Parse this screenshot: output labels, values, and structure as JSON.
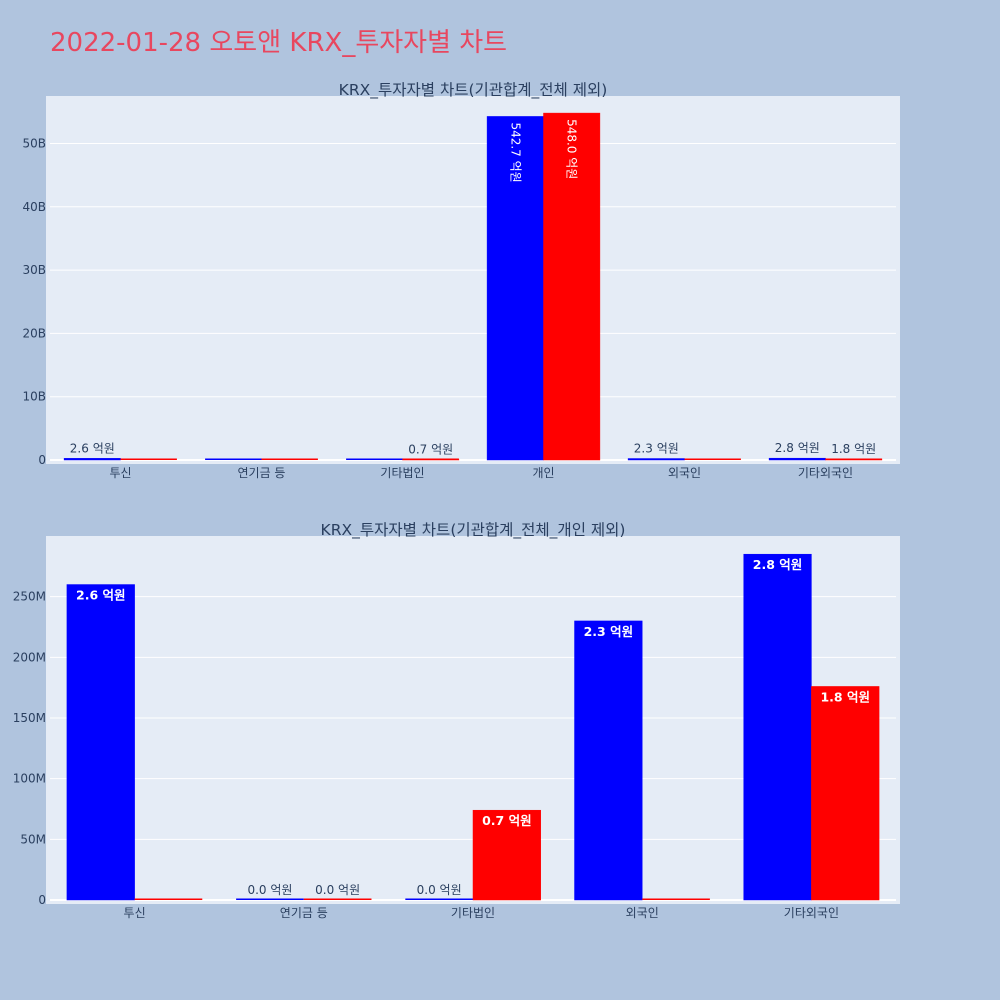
{
  "page": {
    "title": "2022-01-28 오토앤 KRX_투자자별 차트",
    "colors": {
      "background": "#b0c4de",
      "plot_bg": "#e5ecf6",
      "title": "#e8475f",
      "text": "#2a3f5f",
      "buy": "#0000ff",
      "sell": "#ff0000"
    }
  },
  "chart_data": [
    {
      "type": "bar",
      "title": "KRX_투자자별 차트(기관합계_전체 제외)",
      "categories": [
        "투신",
        "연기금 등",
        "기타법인",
        "개인",
        "외국인",
        "기타외국인"
      ],
      "series": [
        {
          "color": "#0000ff",
          "values": [
            260000000,
            0,
            0,
            54270000000,
            230000000,
            285000000
          ],
          "labels": [
            "2.6 억원",
            "",
            "",
            "542.7 억원",
            "2.3 억원",
            "2.8 억원"
          ]
        },
        {
          "color": "#ff0000",
          "values": [
            0,
            0,
            74000000,
            54800000000,
            0,
            176000000
          ],
          "labels": [
            "",
            "",
            "0.7 억원",
            "548.0 억원",
            "",
            "1.8 억원"
          ]
        }
      ],
      "yticks": [
        0,
        10000000000,
        20000000000,
        30000000000,
        40000000000,
        50000000000
      ],
      "ytick_labels": [
        "0",
        "10B",
        "20B",
        "30B",
        "40B",
        "50B"
      ],
      "ylim": [
        0,
        57500000000
      ],
      "grid": true
    },
    {
      "type": "bar",
      "title": "KRX_투자자별 차트(기관합계_전체_개인 제외)",
      "categories": [
        "투신",
        "연기금 등",
        "기타법인",
        "외국인",
        "기타외국인"
      ],
      "series": [
        {
          "color": "#0000ff",
          "values": [
            260000000,
            0,
            0,
            230000000,
            285000000
          ],
          "labels": [
            "2.6 억원",
            "0.0 억원",
            "0.0 억원",
            "2.3 억원",
            "2.8 억원"
          ]
        },
        {
          "color": "#ff0000",
          "values": [
            0,
            0,
            74000000,
            0,
            176000000
          ],
          "labels": [
            "",
            "0.0 억원",
            "0.7 억원",
            "",
            "1.8 억원"
          ]
        }
      ],
      "yticks": [
        0,
        50000000,
        100000000,
        150000000,
        200000000,
        250000000
      ],
      "ytick_labels": [
        "0",
        "50M",
        "100M",
        "150M",
        "200M",
        "250M"
      ],
      "ylim": [
        0,
        300000000
      ],
      "grid": true
    }
  ]
}
